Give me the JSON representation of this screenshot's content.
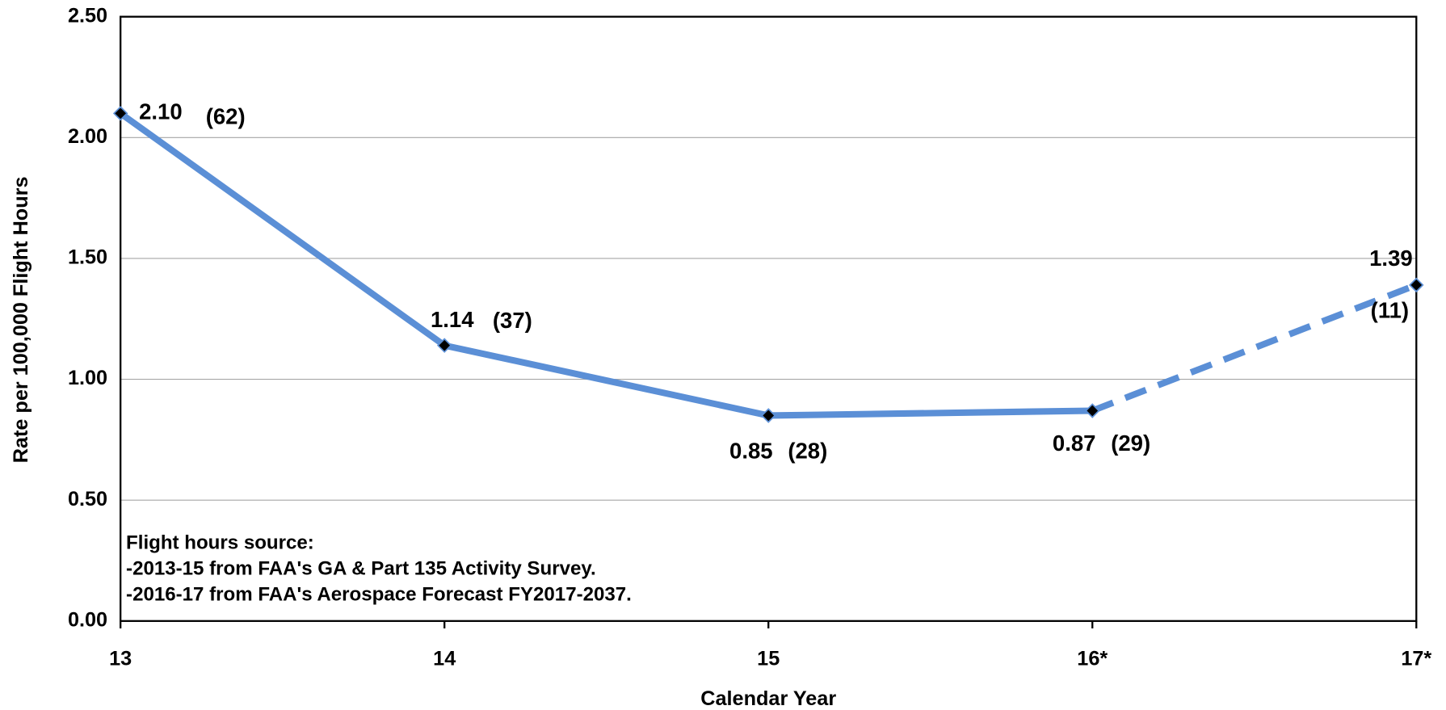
{
  "chart_data": {
    "type": "line",
    "categories": [
      "13",
      "14",
      "15",
      "16*",
      "17*"
    ],
    "values": [
      2.1,
      1.14,
      0.85,
      0.87,
      1.39
    ],
    "value_labels": [
      "2.10",
      "1.14",
      "0.85",
      "0.87",
      "1.39"
    ],
    "counts": [
      62,
      37,
      28,
      29,
      11
    ],
    "count_labels": [
      "(62)",
      "(37)",
      "(28)",
      "(29)",
      "(11)"
    ],
    "color": "#5b8fd6",
    "projected_from_index": 3,
    "ylim": [
      0,
      2.5
    ],
    "yticks": [
      {
        "value": 0,
        "label": "0.00"
      },
      {
        "value": 0.5,
        "label": "0.50"
      },
      {
        "value": 1,
        "label": "1.00"
      },
      {
        "value": 1.5,
        "label": "1.50"
      },
      {
        "value": 2,
        "label": "2.00"
      },
      {
        "value": 2.5,
        "label": "2.50"
      }
    ],
    "grid": true,
    "x_label": "Calendar Year",
    "y_label": "Rate per 100,000 Flight Hours",
    "annotations": [
      "Flight hours source:",
      "-2013-15 from FAA's GA & Part 135 Activity Survey.",
      "-2016-17 from FAA's Aerospace Forecast FY2017-2037."
    ]
  }
}
